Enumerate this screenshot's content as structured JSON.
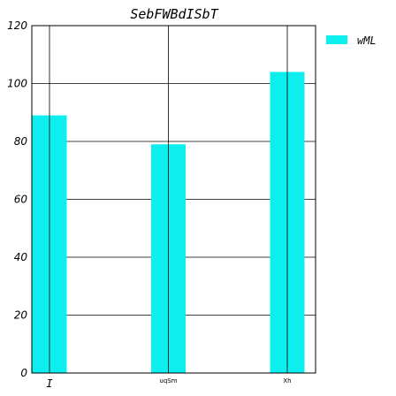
{
  "chart_data": {
    "type": "bar",
    "title": "SebFWBdISbT",
    "xlabel": "",
    "ylabel": "",
    "categories": [
      "I",
      "uqSm",
      "Xh"
    ],
    "series": [
      {
        "name": "wML",
        "values": [
          89,
          79,
          104
        ]
      }
    ],
    "ylim": [
      0,
      120
    ],
    "yticks": [
      0,
      20,
      40,
      60,
      80,
      100,
      120
    ],
    "grid": true,
    "legend": "top-right outside",
    "bar_color": "#0deeee"
  }
}
